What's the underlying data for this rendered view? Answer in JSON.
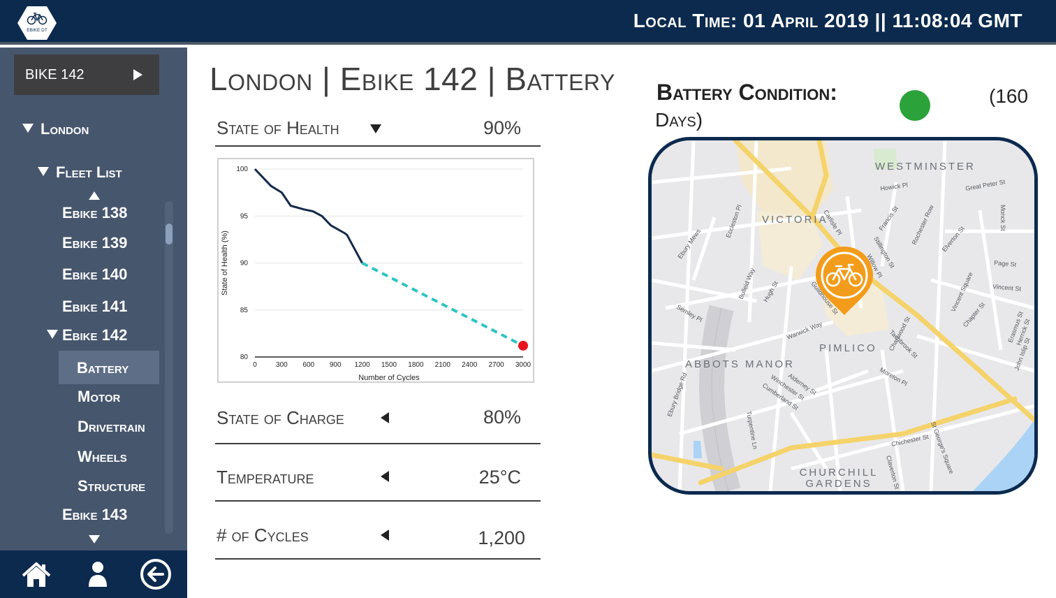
{
  "header": {
    "logo_text": "EBIKE DT",
    "local_time": "Local Time: 01 April 2019 || 11:08:04 GMT"
  },
  "sidebar": {
    "bike_select": "BIKE 142",
    "city": "London",
    "fleet_label": "Fleet List",
    "fleet": [
      "Ebike 138",
      "Ebike 139",
      "Ebike 140",
      "Ebike 141",
      "Ebike 142",
      "Ebike 143"
    ],
    "components": [
      "Battery",
      "Motor",
      "Drivetrain",
      "Wheels",
      "Structure"
    ],
    "active_component": "Battery"
  },
  "bottom_nav": {
    "icons": [
      "home-icon",
      "user-icon",
      "back-arrow-icon"
    ]
  },
  "main": {
    "title": "London | Ebike 142 | Battery",
    "metrics": [
      {
        "label": "State of Health",
        "value": "90%",
        "control": "chevron-down-icon"
      },
      {
        "label": "State of Charge",
        "value": "80%",
        "control": "chevron-left-icon"
      },
      {
        "label": "Temperature",
        "value": "25°C",
        "control": "chevron-left-icon"
      },
      {
        "label": "# of Cycles",
        "value": "1,200",
        "control": "chevron-left-icon"
      }
    ]
  },
  "chart_data": {
    "type": "line",
    "title": "",
    "xlabel": "Number of Cycles",
    "ylabel": "State of Health (%)",
    "xlim": [
      0,
      3000
    ],
    "ylim": [
      80,
      100
    ],
    "x_ticks": [
      "0",
      "300",
      "600",
      "900",
      "1200",
      "1500",
      "1800",
      "2100",
      "2400",
      "2700",
      "3000"
    ],
    "y_ticks": [
      "100",
      "95",
      "90",
      "85",
      "80"
    ],
    "grid": true,
    "series": [
      {
        "style": "solid",
        "color": "#13294b",
        "points": [
          [
            0,
            100
          ],
          [
            180,
            98.2
          ],
          [
            300,
            97.5
          ],
          [
            400,
            96.1
          ],
          [
            550,
            95.7
          ],
          [
            650,
            95.5
          ],
          [
            750,
            95.0
          ],
          [
            850,
            94.0
          ],
          [
            1000,
            93.2
          ],
          [
            1030,
            93.0
          ],
          [
            1200,
            90.0
          ]
        ]
      },
      {
        "style": "dashed",
        "color": "#2ec4c4",
        "points": [
          [
            1200,
            90.0
          ],
          [
            3000,
            81.2
          ]
        ]
      }
    ],
    "marker": {
      "x": 3000,
      "y": 81.2,
      "color": "#e8141c"
    }
  },
  "battery_condition": {
    "label": "Battery Condition:",
    "status_color": "#2ca33a",
    "days_open": "(160",
    "days_close": "Days)"
  },
  "map": {
    "areas": [
      "WESTMINSTER",
      "VICTORIA",
      "PIMLICO",
      "ABBOTS MANOR",
      "CHURCHILL GARDENS"
    ],
    "streets": [
      "Howick Pl",
      "Great Peter St",
      "Monck St",
      "Carlisle Pl",
      "Francis St",
      "Rochester Row",
      "Stillington St",
      "Willow Pl",
      "Elverton St",
      "Page St",
      "Vincent St",
      "Vincent Square",
      "Chapter St",
      "Eccleston Pl",
      "Ebury Mews",
      "Bulleid Way",
      "Hugh St",
      "Semley Pl",
      "Warwick Way",
      "Guildhouse St",
      "Charlwood St",
      "Tachbrook St",
      "Moreton Pl",
      "Winchester St",
      "Alderney St",
      "Cumberland St",
      "Ebury Bridge Rd",
      "Turpentine Ln",
      "Chichester St",
      "St George's Square",
      "Claverton St",
      "Erasmus St",
      "Herrick St",
      "John Islip St"
    ],
    "pin_icon": "bicycle-icon"
  }
}
